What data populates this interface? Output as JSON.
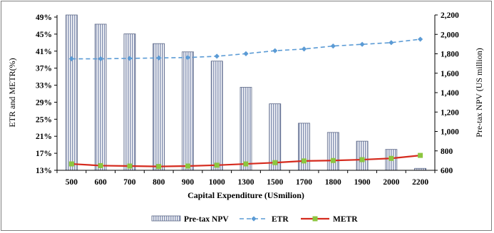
{
  "chart_data": {
    "type": "bar",
    "categories": [
      "500",
      "600",
      "700",
      "800",
      "900",
      "1000",
      "1300",
      "1500",
      "1700",
      "1800",
      "1900",
      "2000",
      "2200"
    ],
    "xlabel": "Capital Expenditure (USmilion)",
    "ylabel_left": "ETR and METR(%)",
    "ylabel_right": "Pre-tax NPV (US million)",
    "y_left": {
      "lim": [
        13,
        49.5
      ],
      "ticks": [
        13,
        17,
        21,
        25,
        29,
        33,
        37,
        41,
        45,
        49
      ],
      "tick_labels": [
        "13%",
        "17%",
        "21%",
        "25%",
        "29%",
        "33%",
        "37%",
        "41%",
        "45%",
        "49%"
      ]
    },
    "y_right": {
      "lim": [
        600,
        2200
      ],
      "ticks": [
        600,
        800,
        1000,
        1200,
        1400,
        1600,
        1800,
        2000,
        2200
      ],
      "tick_labels": [
        "600",
        "800",
        "1,000",
        "1,200",
        "1,400",
        "1,600",
        "1,800",
        "2,000",
        "2,200"
      ]
    },
    "series": [
      {
        "name": "Pre-tax NPV",
        "type": "bar",
        "axis": "right",
        "color": "#aab2c8",
        "values": [
          2200,
          2105,
          2005,
          1905,
          1820,
          1725,
          1455,
          1285,
          1085,
          990,
          900,
          815,
          620
        ]
      },
      {
        "name": "ETR",
        "type": "line",
        "axis": "left",
        "color": "#5b9bd5",
        "dashed": true,
        "marker": "diamond",
        "values": [
          39.2,
          39.2,
          39.3,
          39.4,
          39.5,
          39.8,
          40.4,
          41.1,
          41.5,
          42.2,
          42.6,
          43.0,
          43.8
        ]
      },
      {
        "name": "METR",
        "type": "line",
        "axis": "left",
        "color": "#d52b1e",
        "marker_color": "#8cc63f",
        "marker": "square",
        "values": [
          14.5,
          14.1,
          14.0,
          13.9,
          14.0,
          14.2,
          14.5,
          14.8,
          15.2,
          15.3,
          15.5,
          15.8,
          16.5
        ]
      }
    ],
    "legend_position": "bottom",
    "grid": false
  }
}
